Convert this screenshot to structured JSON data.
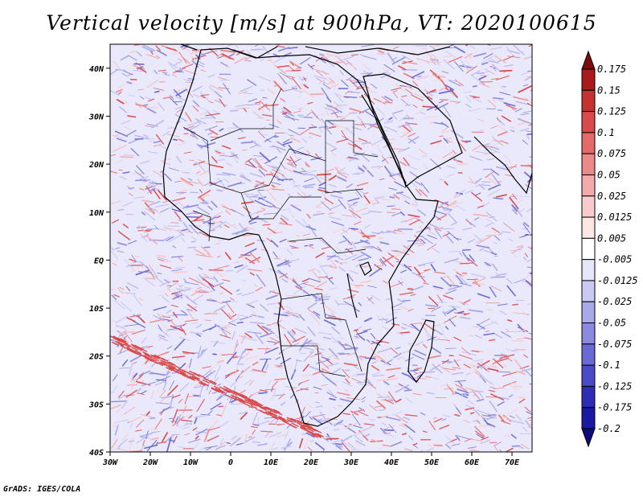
{
  "title": "Vertical velocity [m/s] at 900hPa, VT: 2020100615",
  "credit": "GrADS: IGES/COLA",
  "lat_labels": [
    "40N",
    "30N",
    "20N",
    "10N",
    "EQ",
    "10S",
    "20S",
    "30S",
    "40S"
  ],
  "lat_values": [
    40,
    30,
    20,
    10,
    0,
    -10,
    -20,
    -30,
    -40
  ],
  "lon_labels": [
    "30W",
    "20W",
    "10W",
    "0",
    "10E",
    "20E",
    "30E",
    "40E",
    "50E",
    "60E",
    "70E"
  ],
  "lon_values": [
    -30,
    -20,
    -10,
    0,
    10,
    20,
    30,
    40,
    50,
    60,
    70
  ],
  "domain": {
    "lon_min": -30,
    "lon_max": 75,
    "lat_min": -40,
    "lat_max": 45
  },
  "colorbar": {
    "labels": [
      "0.175",
      "0.15",
      "0.125",
      "0.1",
      "0.075",
      "0.05",
      "0.025",
      "0.0125",
      "0.005",
      "-0.005",
      "-0.0125",
      "-0.025",
      "-0.05",
      "-0.075",
      "-0.1",
      "-0.125",
      "-0.175",
      "-0.2"
    ],
    "colors": [
      "#7a0d0d",
      "#a81b1b",
      "#c43232",
      "#d94a4a",
      "#e46a6a",
      "#ec8a8a",
      "#f2aaaa",
      "#f8cccc",
      "#fce6e6",
      "#ffffff",
      "#e6e6fb",
      "#c9c9f3",
      "#a9a9ea",
      "#8a8ae0",
      "#6a6ad6",
      "#4b4bc8",
      "#2e2eb5",
      "#1a1aa0",
      "#0c0c7a"
    ]
  },
  "colors": {
    "positive": "#e0342f",
    "negative": "#3a3ae0",
    "coast": "#000000"
  }
}
